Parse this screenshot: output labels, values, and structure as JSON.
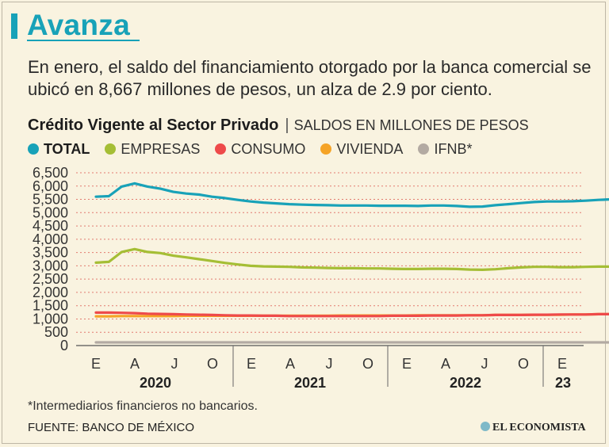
{
  "headline": "Avanza",
  "intro": "En enero, el saldo del financiamiento otorgado por la banca comercial se ubicó en 8,667 millones de pesos, un alza de 2.9 por ciento.",
  "footnote": "*Intermediarios financieros no bancarios.",
  "source": "FUENTE: BANCO DE MÉXICO",
  "brand": "EL ECONOMISTA",
  "colors": {
    "accent": "#18a2b8",
    "total": "#18a2b8",
    "empresas": "#a5be35",
    "consumo": "#ee4a4a",
    "vivienda": "#f5a326",
    "ifnb": "#b3aaa2"
  },
  "chart_data": {
    "type": "line",
    "title": "Crédito Vigente al Sector Privado",
    "subtitle": "SALDOS EN MILLONES DE PESOS",
    "ylim": [
      0,
      6500
    ],
    "yticks": [
      "6,500",
      "6,000",
      "5,500",
      "5,000",
      "4,500",
      "4,000",
      "3,500",
      "3,000",
      "2,500",
      "2,000",
      "1,500",
      "1,000",
      "500",
      "0"
    ],
    "xtick_labels": [
      "E",
      "A",
      "J",
      "O",
      "E",
      "A",
      "J",
      "O",
      "E",
      "A",
      "J",
      "O",
      "E"
    ],
    "year_labels": [
      "2020",
      "2021",
      "2022",
      "23"
    ],
    "grid": true,
    "series": [
      {
        "name": "TOTAL",
        "key": "total",
        "values": [
          5600,
          5620,
          5980,
          6100,
          5980,
          5900,
          5780,
          5720,
          5680,
          5600,
          5550,
          5480,
          5420,
          5380,
          5350,
          5320,
          5300,
          5290,
          5280,
          5270,
          5270,
          5270,
          5260,
          5260,
          5260,
          5250,
          5270,
          5270,
          5250,
          5220,
          5230,
          5280,
          5320,
          5360,
          5400,
          5420,
          5420,
          5430,
          5450,
          5480,
          5500,
          5510,
          5480
        ]
      },
      {
        "name": "EMPRESAS",
        "key": "empresas",
        "values": [
          3120,
          3150,
          3520,
          3630,
          3520,
          3480,
          3380,
          3320,
          3250,
          3180,
          3110,
          3050,
          3000,
          2980,
          2970,
          2960,
          2940,
          2930,
          2920,
          2910,
          2910,
          2900,
          2900,
          2890,
          2880,
          2880,
          2890,
          2890,
          2880,
          2860,
          2850,
          2870,
          2910,
          2940,
          2960,
          2960,
          2950,
          2950,
          2960,
          2970,
          2970,
          2960,
          2940
        ]
      },
      {
        "name": "CONSUMO",
        "key": "consumo",
        "values": [
          1240,
          1240,
          1230,
          1220,
          1200,
          1190,
          1180,
          1170,
          1160,
          1150,
          1140,
          1130,
          1130,
          1120,
          1120,
          1110,
          1110,
          1110,
          1110,
          1110,
          1110,
          1110,
          1110,
          1120,
          1120,
          1120,
          1130,
          1130,
          1130,
          1140,
          1140,
          1150,
          1150,
          1150,
          1160,
          1160,
          1170,
          1170,
          1170,
          1180,
          1180,
          1180,
          1180
        ]
      },
      {
        "name": "VIVIENDA",
        "key": "vivienda",
        "values": [
          1100,
          1100,
          1110,
          1110,
          1110,
          1110,
          1110,
          1120,
          1120,
          1120,
          1120,
          1120,
          1120,
          1120,
          1120,
          1120,
          1120,
          1120,
          1120,
          1130,
          1130,
          1130,
          1130,
          1130,
          1130,
          1140,
          1140,
          1140,
          1140,
          1140,
          1140,
          1150,
          1150,
          1150,
          1160,
          1160,
          1160,
          1170,
          1170,
          1180,
          1180,
          1180,
          1190
        ]
      },
      {
        "name": "IFNB*",
        "key": "ifnb",
        "values": [
          120,
          120,
          120,
          120,
          120,
          120,
          120,
          120,
          120,
          120,
          120,
          120,
          120,
          120,
          120,
          120,
          120,
          120,
          120,
          120,
          120,
          120,
          120,
          120,
          120,
          120,
          120,
          120,
          120,
          120,
          120,
          120,
          120,
          120,
          120,
          120,
          120,
          120,
          120,
          120,
          120,
          120,
          120
        ]
      }
    ]
  }
}
